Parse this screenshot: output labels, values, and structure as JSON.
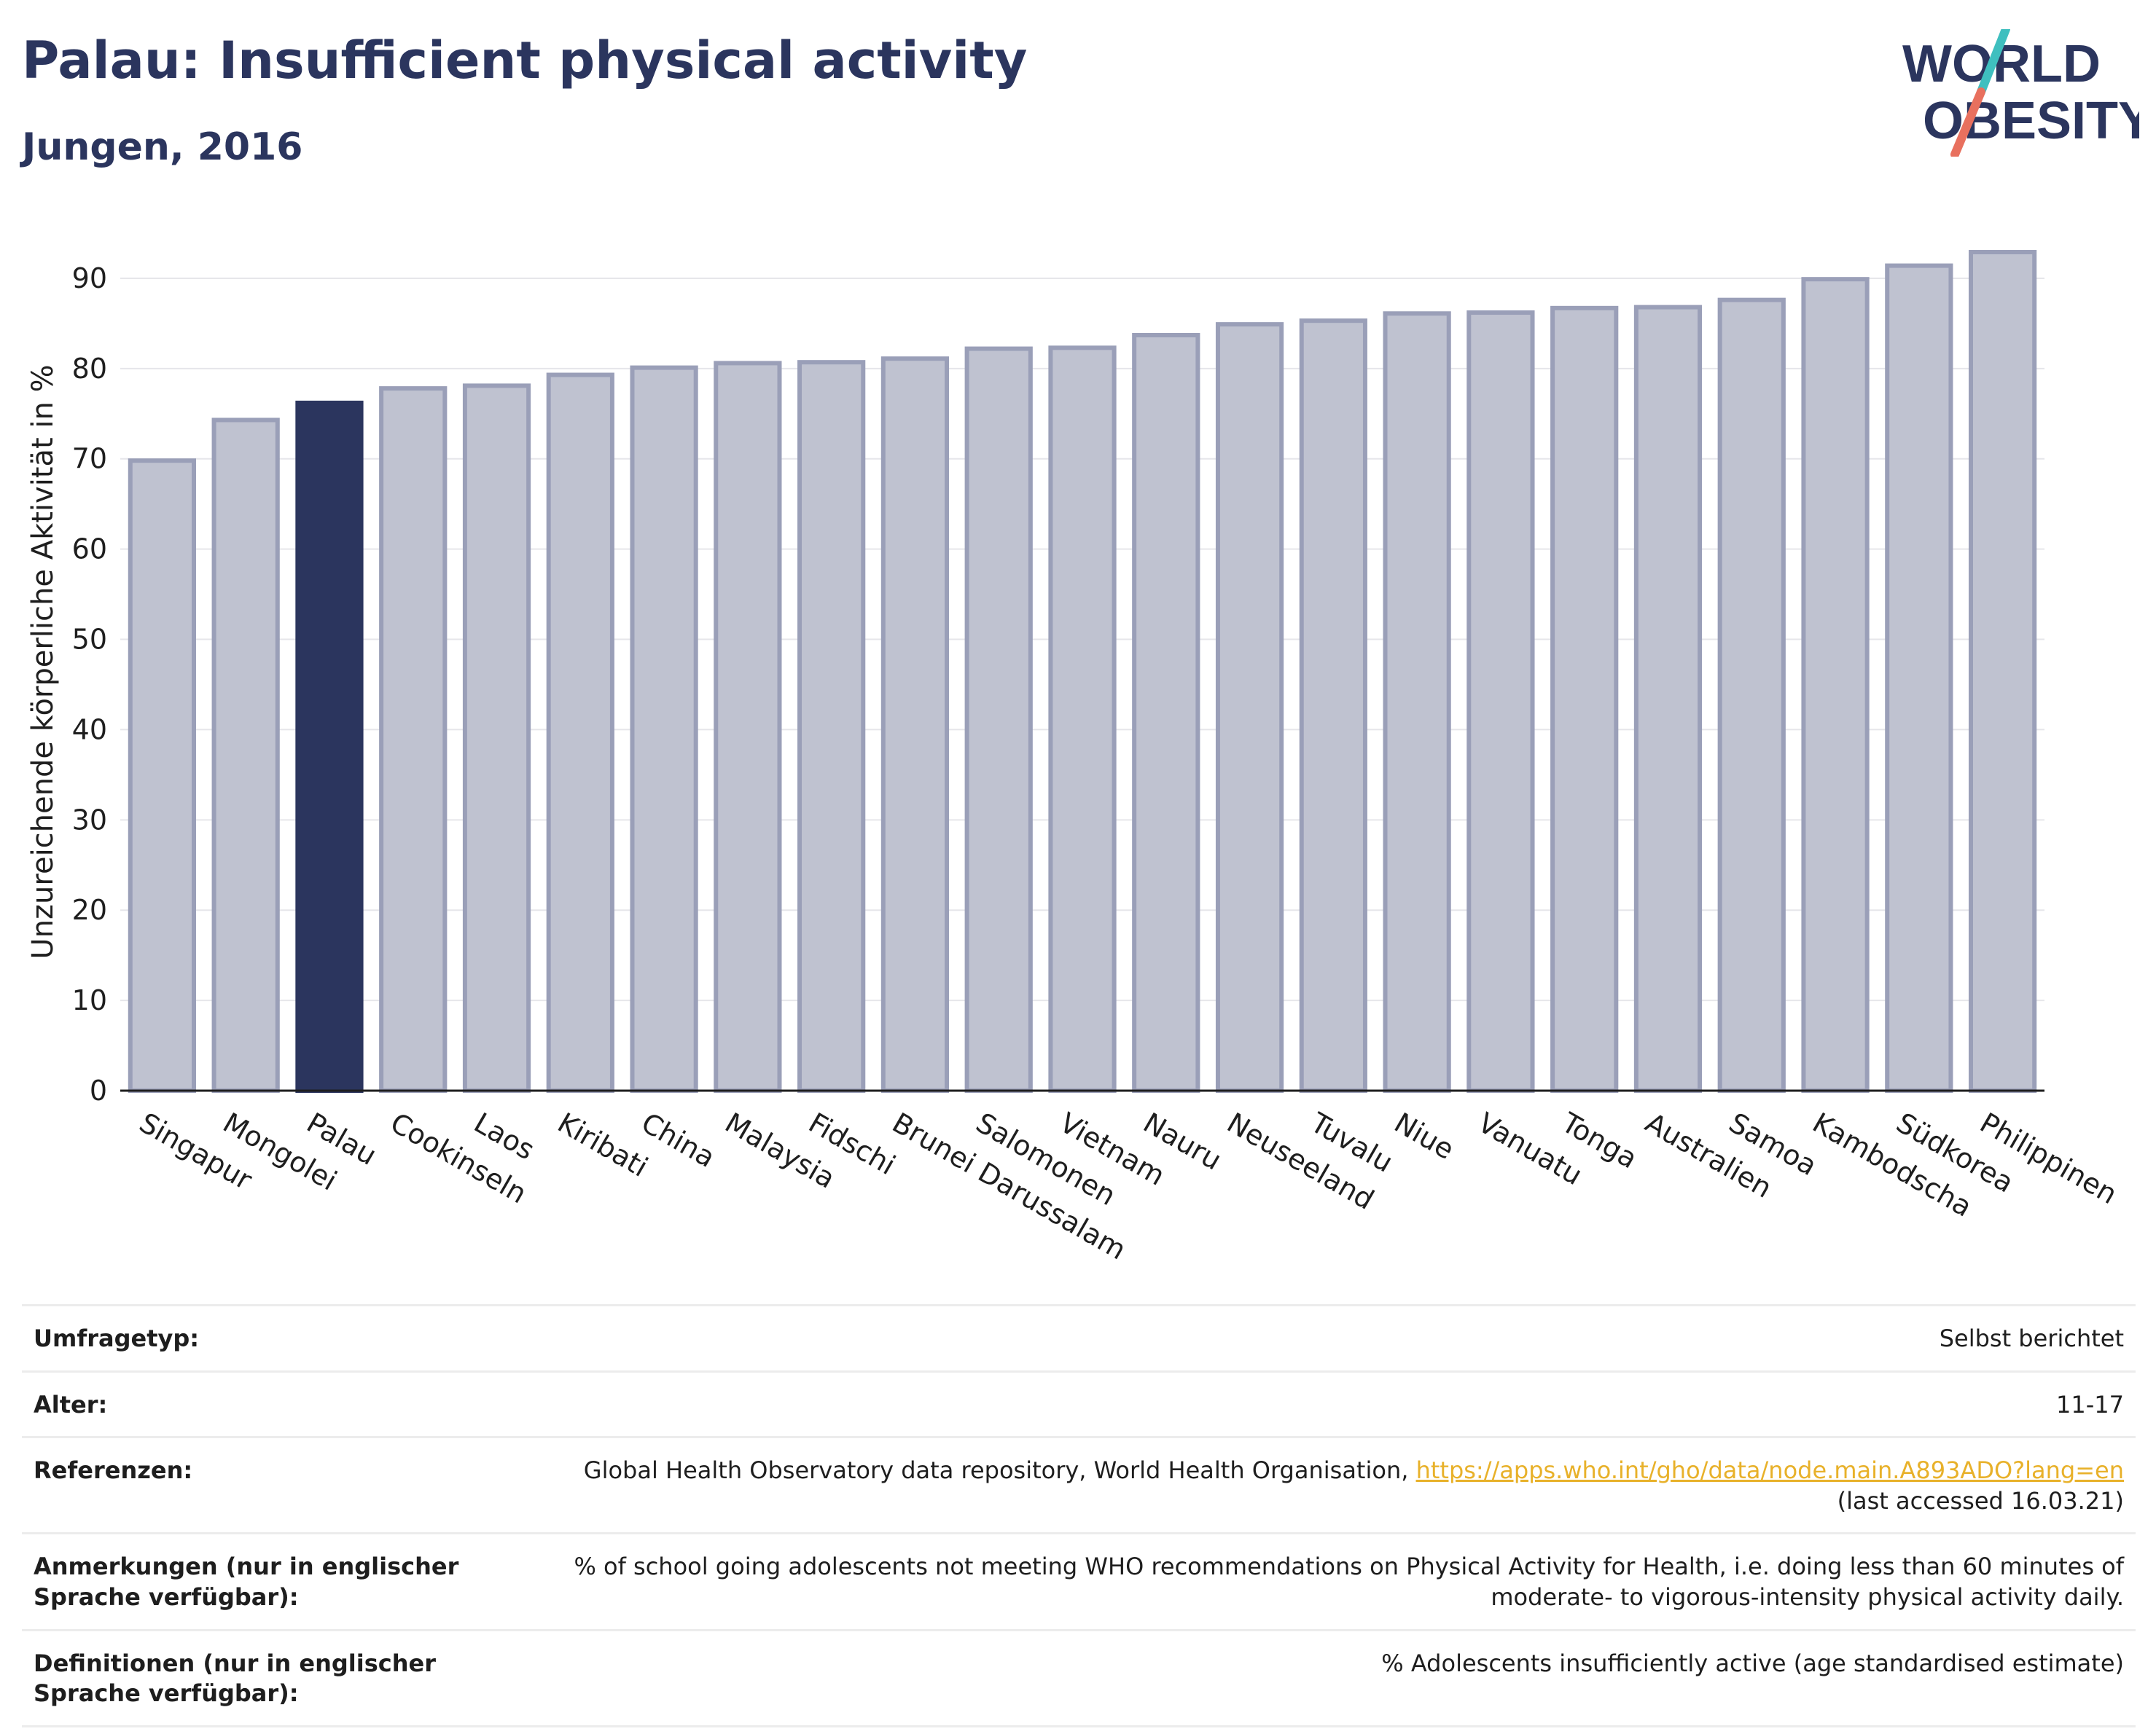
{
  "header": {
    "title": "Palau: Insufficient physical activity",
    "subtitle": "Jungen, 2016"
  },
  "logo": {
    "line1": "WORLD",
    "line2": "OBESITY",
    "colors": {
      "text": "#2b355e",
      "slash_teal": "#3fbfbf",
      "slash_coral": "#e8705e"
    }
  },
  "chart_data": {
    "type": "bar",
    "title": "Palau: Insufficient physical activity",
    "subtitle": "Jungen, 2016",
    "xlabel": "",
    "ylabel": "Unzureichende körperliche Aktivität in %",
    "ylim": [
      0,
      95
    ],
    "yticks": [
      0,
      10,
      20,
      30,
      40,
      50,
      60,
      70,
      80,
      90
    ],
    "grid": true,
    "highlight": "Palau",
    "colors": {
      "bar": "#bfc2d0",
      "bar_edge": "#9a9fb8",
      "highlight": "#2b355e",
      "grid": "#e6e6ea"
    },
    "categories": [
      "Singapur",
      "Mongolei",
      "Palau",
      "Cookinseln",
      "Laos",
      "Kiribati",
      "China",
      "Malaysia",
      "Fidschi",
      "Brunei Darussalam",
      "Salomonen",
      "Vietnam",
      "Nauru",
      "Neuseeland",
      "Tuvalu",
      "Niue",
      "Vanuatu",
      "Tonga",
      "Australien",
      "Samoa",
      "Kambodscha",
      "Südkorea",
      "Philippinen"
    ],
    "values": [
      69.8,
      74.3,
      76.2,
      77.8,
      78.1,
      79.3,
      80.1,
      80.6,
      80.7,
      81.1,
      82.2,
      82.3,
      83.7,
      84.9,
      85.3,
      86.1,
      86.2,
      86.7,
      86.8,
      87.6,
      89.9,
      91.4,
      92.9
    ]
  },
  "info": {
    "survey_type": {
      "label": "Umfragetyp:",
      "value": "Selbst berichtet"
    },
    "age": {
      "label": "Alter:",
      "value": "11-17"
    },
    "references": {
      "label": "Referenzen:",
      "text": "Global Health Observatory data repository, World Health Organisation,",
      "link": "https://apps.who.int/gho/data/node.main.A893ADO?lang=en",
      "accessed": "(last accessed 16.03.21)"
    },
    "notes": {
      "label": "Anmerkungen (nur in englischer Sprache verfügbar):",
      "value": "% of school going adolescents not meeting WHO recommendations on Physical Activity for Health, i.e. doing less than 60 minutes of moderate- to vigorous-intensity physical activity daily."
    },
    "definitions": {
      "label": "Definitionen (nur in englischer Sprache verfügbar):",
      "value": "% Adolescents insufficiently active (age standardised estimate)"
    }
  }
}
